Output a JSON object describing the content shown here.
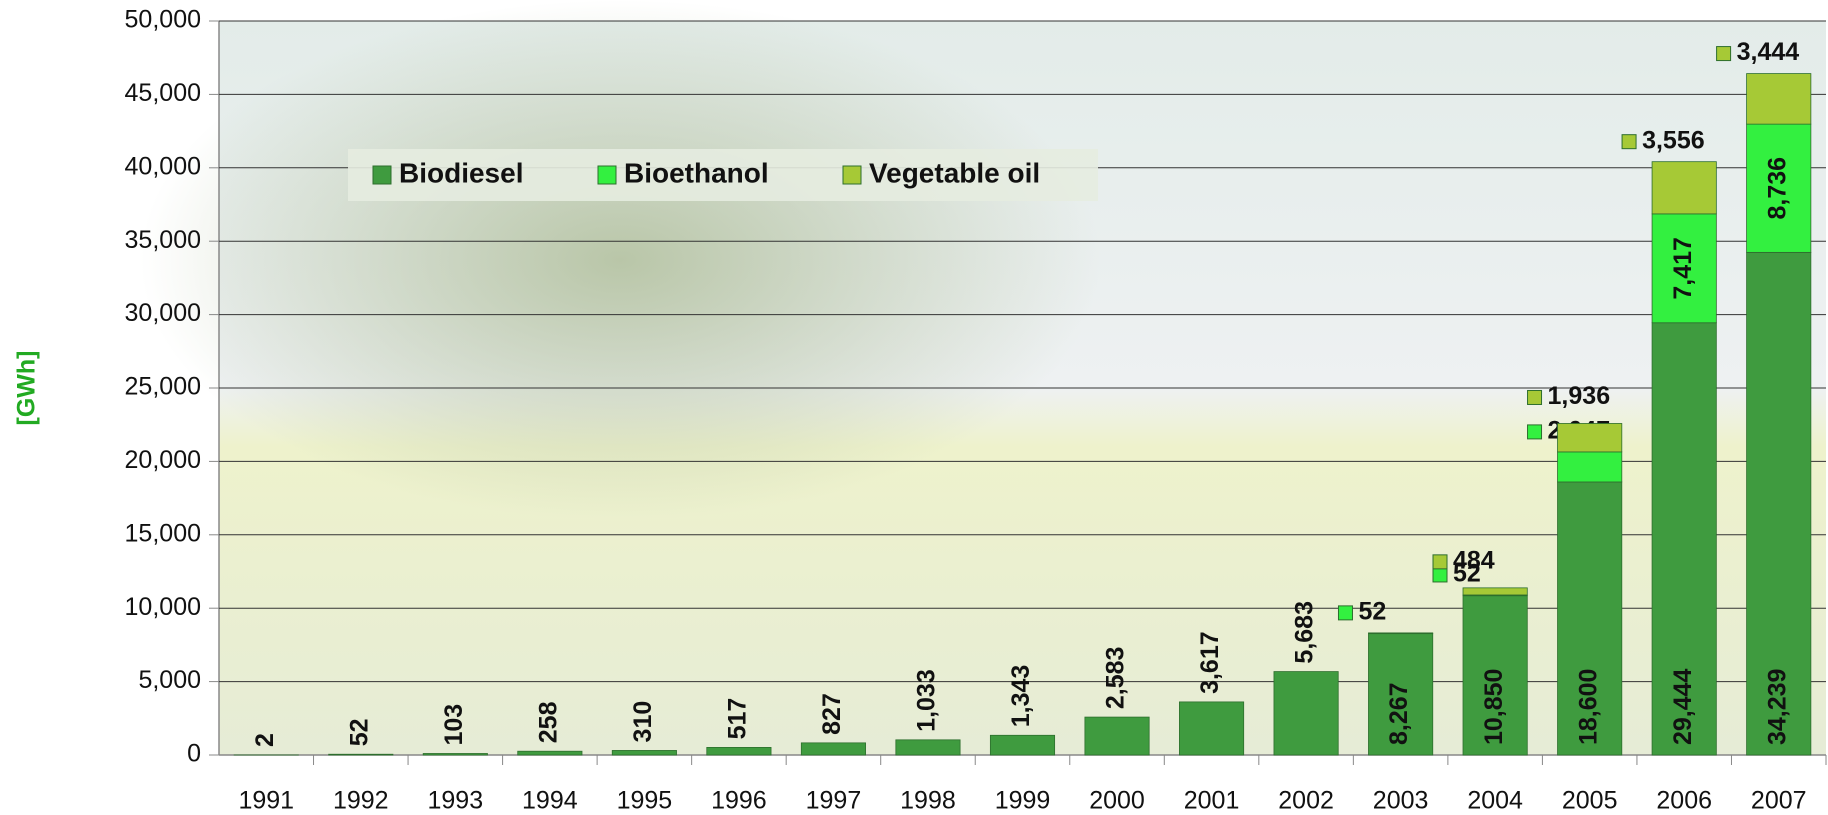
{
  "chart_data": {
    "type": "stacked_bar",
    "y_label": "[GWh]",
    "categories": [
      "1991",
      "1992",
      "1993",
      "1994",
      "1995",
      "1996",
      "1997",
      "1998",
      "1999",
      "2000",
      "2001",
      "2002",
      "2003",
      "2004",
      "2005",
      "2006",
      "2007"
    ],
    "series": [
      {
        "name": "Biodiesel",
        "color": "#3f9b3f",
        "values": [
          2,
          52,
          103,
          258,
          310,
          517,
          827,
          1033,
          1343,
          2583,
          3617,
          5683,
          8267,
          10850,
          18600,
          29444,
          34239
        ],
        "value_labels": [
          "2",
          "52",
          "103",
          "258",
          "310",
          "517",
          "827",
          "1,033",
          "1,343",
          "2,583",
          "3,617",
          "5,683",
          "8,267",
          "10,850",
          "18,600",
          "29,444",
          "34,239"
        ]
      },
      {
        "name": "Bioethanol",
        "color": "#33f040",
        "values": [
          null,
          null,
          null,
          null,
          null,
          null,
          null,
          null,
          null,
          null,
          null,
          null,
          52,
          52,
          2047,
          7417,
          8736
        ],
        "value_labels": [
          null,
          null,
          null,
          null,
          null,
          null,
          null,
          null,
          null,
          null,
          null,
          null,
          "52",
          "52",
          "2,047",
          "7,417",
          "8,736"
        ]
      },
      {
        "name": "Vegetable oil",
        "color": "#a6c936",
        "values": [
          null,
          null,
          null,
          null,
          null,
          null,
          null,
          null,
          null,
          null,
          null,
          null,
          null,
          484,
          1936,
          3556,
          3444
        ],
        "value_labels": [
          null,
          null,
          null,
          null,
          null,
          null,
          null,
          null,
          null,
          null,
          null,
          null,
          null,
          "484",
          "1,936",
          "3,556",
          "3,444"
        ]
      }
    ],
    "ylim": [
      0,
      50000
    ],
    "yticks": [
      0,
      {
        "value": 5000,
        "label": "5,000"
      },
      {
        "value": 10000,
        "label": "10,000"
      },
      {
        "value": 15000,
        "label": "15,000"
      },
      {
        "value": 20000,
        "label": "20,000"
      },
      {
        "value": 25000,
        "label": "25,000"
      },
      {
        "value": 30000,
        "label": "30,000"
      },
      {
        "value": 35000,
        "label": "35,000"
      },
      {
        "value": 40000,
        "label": "40,000"
      },
      {
        "value": 45000,
        "label": "45,000"
      },
      {
        "value": 50000,
        "label": "50,000"
      }
    ],
    "grid": true,
    "legend": "top"
  }
}
